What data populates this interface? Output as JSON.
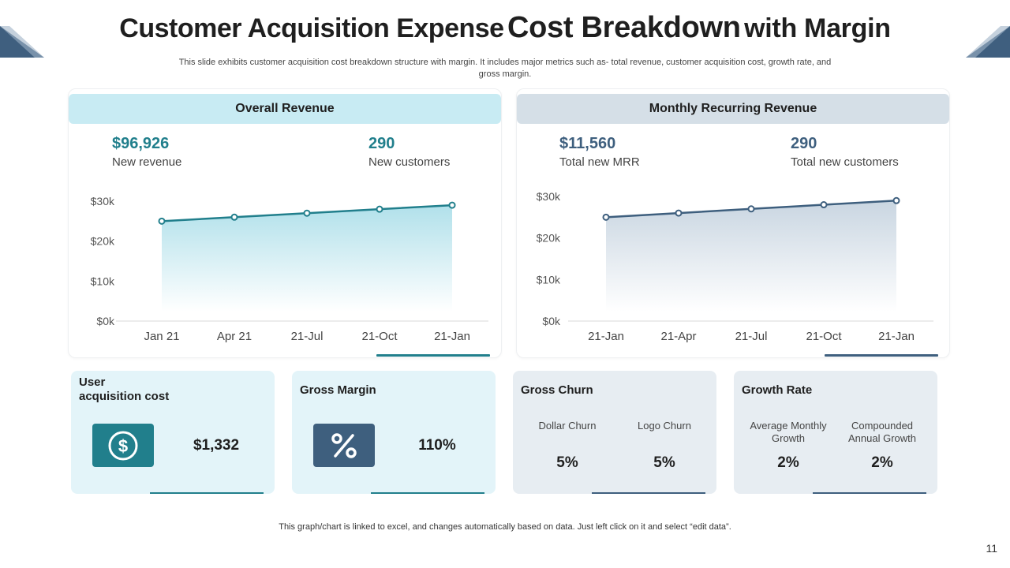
{
  "title": {
    "part1": "Customer Acquisition Expense",
    "part2": "Cost Breakdown",
    "part3": "with Margin"
  },
  "subtitle": "This slide exhibits customer acquisition cost breakdown structure with margin. It includes major metrics such as- total revenue, customer acquisition cost, growth rate, and gross margin.",
  "overall_revenue": {
    "header": "Overall Revenue",
    "metric1": {
      "value": "$96,926",
      "label": "New revenue"
    },
    "metric2": {
      "value": "290",
      "label": "New customers"
    }
  },
  "mrr": {
    "header": "Monthly Recurring Revenue",
    "metric1": {
      "value": "$11,560",
      "label": "Total new MRR"
    },
    "metric2": {
      "value": "290",
      "label": "Total new customers"
    }
  },
  "cards": {
    "uac": {
      "title_line1": "User",
      "title_line2": "acquisition cost",
      "value": "$1,332",
      "icon": "dollar-circle-icon"
    },
    "gross_margin": {
      "title": "Gross Margin",
      "value": "110%",
      "icon": "percent-icon"
    },
    "gross_churn": {
      "title": "Gross Churn",
      "dollar": {
        "label": "Dollar Churn",
        "value": "5%"
      },
      "logo": {
        "label": "Logo Churn",
        "value": "5%"
      }
    },
    "growth_rate": {
      "title": "Growth Rate",
      "monthly": {
        "label": "Average Monthly Growth",
        "value": "2%"
      },
      "annual": {
        "label": "Compounded Annual Growth",
        "value": "2%"
      }
    }
  },
  "footnote": "This graph/chart is linked to excel, and changes automatically based on data. Just left click on it and select “edit data”.",
  "page_number": "11",
  "colors": {
    "teal": "#217f8c",
    "slate": "#3e5f7e",
    "corner": "#3f5f7f"
  },
  "chart_data": [
    {
      "type": "area",
      "categories": [
        "Jan 21",
        "Apr 21",
        "21-Jul",
        "21-Oct",
        "21-Jan"
      ],
      "series": [
        {
          "values": [
            25,
            26,
            27,
            28,
            29
          ]
        }
      ],
      "y_ticks": [
        "$30k",
        "$20k",
        "$10k",
        "$0k"
      ],
      "ylim": [
        0,
        30
      ],
      "unit": "k",
      "color": "#217f8c",
      "fill": "#a8dde8",
      "grid": false
    },
    {
      "type": "area",
      "categories": [
        "21-Jan",
        "21-Apr",
        "21-Jul",
        "21-Oct",
        "21-Jan"
      ],
      "series": [
        {
          "values": [
            25,
            26,
            27,
            28,
            29
          ]
        }
      ],
      "y_ticks": [
        "$30k",
        "$20k",
        "$10k",
        "$0k"
      ],
      "ylim": [
        0,
        30
      ],
      "unit": "k",
      "color": "#3e5f7e",
      "fill": "#c3d1de",
      "grid": false
    }
  ]
}
